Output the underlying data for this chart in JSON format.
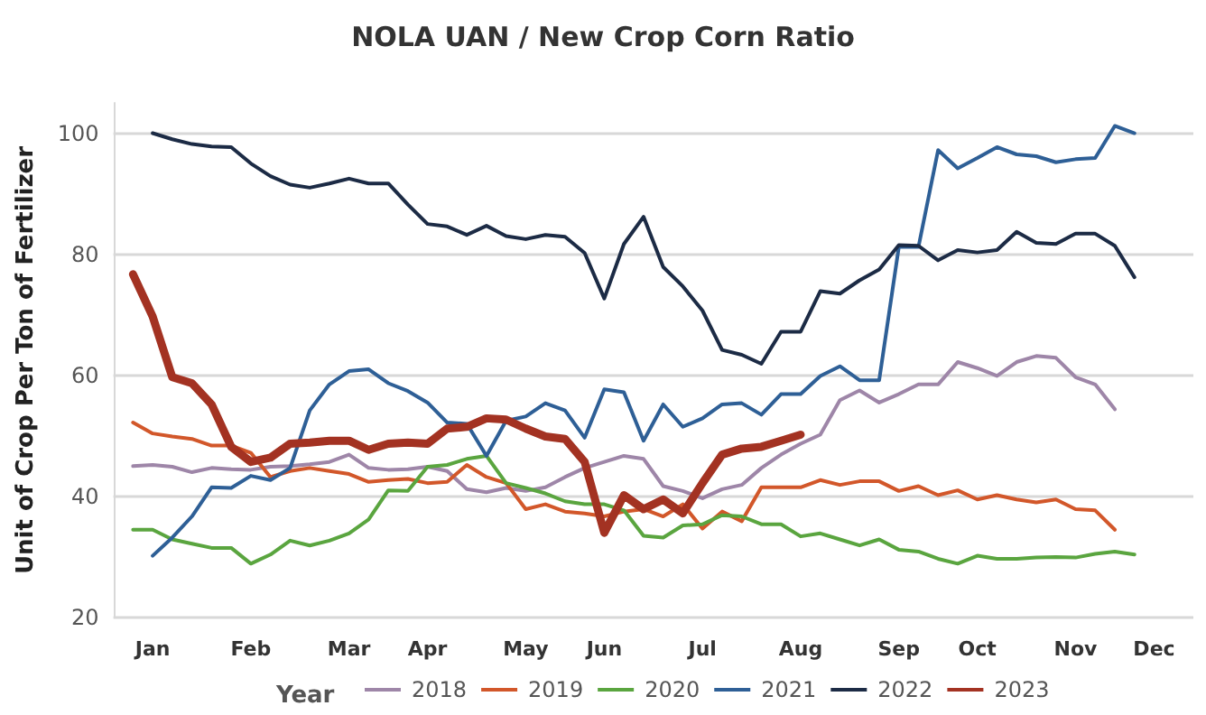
{
  "chart_data": {
    "type": "line",
    "title": "NOLA UAN / New Crop Corn Ratio",
    "ylabel": "Unit of Crop Per Ton of Fertilizer",
    "legend_title": "Year",
    "categories": [
      null,
      null,
      "Jan",
      null,
      null,
      null,
      null,
      "Feb",
      null,
      null,
      null,
      null,
      "Mar",
      null,
      null,
      null,
      "Apr",
      null,
      null,
      null,
      null,
      "May",
      null,
      null,
      null,
      "Jun",
      null,
      null,
      null,
      null,
      "Jul",
      null,
      null,
      null,
      null,
      "Aug",
      null,
      null,
      null,
      null,
      "Sep",
      null,
      null,
      null,
      "Oct",
      null,
      null,
      null,
      null,
      "Nov",
      null,
      null,
      null,
      "Dec",
      null,
      null
    ],
    "ylim": [
      20,
      105
    ],
    "yticks": [
      20,
      40,
      60,
      80,
      100
    ],
    "grid": "y",
    "legend": "bottom",
    "marker": "none",
    "line_style": "solid",
    "series": [
      {
        "name": "2018",
        "color": "#9e86a8",
        "values": [
          null,
          45,
          45.2,
          44.9,
          44,
          44.7,
          44.5,
          44.4,
          44.9,
          45,
          45.3,
          45.7,
          46.9,
          44.7,
          44.4,
          44.5,
          44.9,
          44.2,
          41.2,
          40.7,
          41.4,
          40.9,
          41.5,
          43.2,
          44.7,
          45.7,
          46.7,
          46.2,
          41.7,
          40.9,
          39.7,
          41.2,
          41.9,
          44.7,
          46.9,
          48.7,
          50.2,
          55.9,
          57.5,
          55.5,
          56.9,
          58.5,
          58.5,
          62.2,
          61.2,
          59.9,
          62.2,
          63.2,
          62.9,
          59.7,
          58.5,
          54.4,
          null,
          null,
          null,
          null
        ]
      },
      {
        "name": "2019",
        "color": "#d2572a",
        "values": [
          null,
          52.2,
          50.4,
          49.9,
          49.5,
          48.4,
          48.4,
          47.2,
          43.2,
          44.2,
          44.7,
          44.2,
          43.7,
          42.4,
          42.7,
          42.9,
          42.2,
          42.4,
          45.2,
          43.2,
          42.2,
          37.9,
          38.7,
          37.5,
          37.2,
          36.7,
          37.5,
          37.9,
          36.7,
          38.7,
          34.7,
          37.5,
          35.9,
          41.5,
          41.5,
          41.5,
          42.7,
          41.9,
          42.5,
          42.5,
          40.9,
          41.7,
          40.2,
          41,
          39.5,
          40.2,
          39.5,
          39,
          39.5,
          37.9,
          37.7,
          34.5,
          null,
          null,
          null,
          null
        ]
      },
      {
        "name": "2020",
        "color": "#5aa53f",
        "values": [
          null,
          34.5,
          34.5,
          32.9,
          32.2,
          31.5,
          31.5,
          28.9,
          30.4,
          32.7,
          31.9,
          32.7,
          33.9,
          36.2,
          41,
          40.9,
          44.9,
          45.2,
          46.2,
          46.7,
          42.2,
          41.4,
          40.5,
          39.2,
          38.7,
          38.7,
          37.7,
          33.5,
          33.2,
          35.2,
          35.4,
          36.9,
          36.7,
          35.4,
          35.4,
          33.4,
          33.9,
          32.9,
          31.9,
          32.9,
          31.2,
          30.9,
          29.7,
          28.9,
          30.2,
          29.7,
          29.7,
          29.9,
          30,
          29.9,
          30.5,
          30.9,
          30.4,
          null,
          null,
          null
        ]
      },
      {
        "name": "2021",
        "color": "#2e5f96",
        "values": [
          null,
          null,
          30.2,
          33.2,
          36.7,
          41.5,
          41.4,
          43.4,
          42.7,
          44.7,
          54.2,
          58.5,
          60.7,
          61,
          58.7,
          57.4,
          55.5,
          52.2,
          52,
          46.7,
          52.5,
          53.2,
          55.4,
          54.2,
          49.7,
          57.7,
          57.2,
          49.2,
          55.2,
          51.5,
          52.9,
          55.2,
          55.4,
          53.5,
          56.9,
          56.9,
          59.9,
          61.5,
          59.2,
          59.2,
          81.2,
          81.2,
          97.2,
          94.2,
          95.9,
          97.7,
          96.5,
          96.2,
          95.2,
          95.7,
          95.9,
          101.2,
          100,
          null,
          null,
          null
        ]
      },
      {
        "name": "2022",
        "color": "#1c2b45",
        "values": [
          null,
          null,
          100,
          99,
          98.2,
          97.8,
          97.7,
          95,
          92.9,
          91.5,
          91,
          91.7,
          92.5,
          91.7,
          91.7,
          88.2,
          85,
          84.6,
          83.2,
          84.7,
          83,
          82.5,
          83.2,
          82.9,
          80.2,
          72.7,
          81.7,
          86.2,
          77.9,
          74.7,
          70.7,
          64.2,
          63.4,
          61.9,
          67.2,
          67.2,
          73.9,
          73.5,
          75.7,
          77.5,
          81.5,
          81.4,
          79,
          80.7,
          80.3,
          80.7,
          83.7,
          81.9,
          81.7,
          83.4,
          83.4,
          81.4,
          76.2,
          null,
          null,
          null
        ]
      },
      {
        "name": "2023",
        "color": "#a33222",
        "values": [
          null,
          76.7,
          69.7,
          59.7,
          58.7,
          55.2,
          48.2,
          45.7,
          46.4,
          48.7,
          48.9,
          49.2,
          49.2,
          47.7,
          48.7,
          48.9,
          48.7,
          51.2,
          51.5,
          52.9,
          52.7,
          51.2,
          49.9,
          49.5,
          45.7,
          34,
          40.2,
          37.9,
          39.5,
          37.2,
          42.2,
          46.9,
          47.9,
          48.2,
          49.2,
          50.2,
          null,
          null,
          null,
          null,
          null,
          null,
          null,
          null,
          null,
          null,
          null,
          null,
          null,
          null,
          null,
          null,
          null,
          null,
          null,
          null
        ]
      }
    ]
  }
}
